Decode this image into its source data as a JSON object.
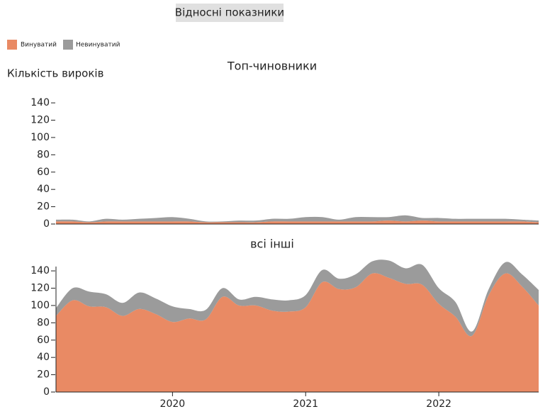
{
  "button": "Відносні показники",
  "chart_data": [
    {
      "type": "stacked-area",
      "title": "Топ-чиновники",
      "y_label": "Кількість вироків",
      "x": [
        2019.125,
        2019.25,
        2019.375,
        2019.5,
        2019.625,
        2019.75,
        2019.875,
        2020,
        2020.125,
        2020.25,
        2020.375,
        2020.5,
        2020.625,
        2020.75,
        2020.875,
        2021,
        2021.125,
        2021.25,
        2021.375,
        2021.5,
        2021.625,
        2021.75,
        2021.875,
        2022,
        2022.125,
        2022.25,
        2022.375,
        2022.5,
        2022.625,
        2022.75
      ],
      "series": [
        {
          "name": "Винуватий",
          "color": "#e98a64",
          "values": [
            3,
            3,
            2,
            3,
            3,
            3,
            3,
            3,
            3,
            2,
            2,
            2,
            2,
            3,
            3,
            3,
            3,
            3,
            3,
            3,
            4,
            3,
            4,
            3,
            3,
            3,
            3,
            3,
            3,
            2
          ]
        },
        {
          "name": "Невинуватий",
          "color": "#9b9b9b",
          "values": [
            2,
            2,
            1,
            3,
            2,
            3,
            4,
            5,
            3,
            1,
            1,
            2,
            2,
            3,
            3,
            5,
            5,
            2,
            5,
            5,
            4,
            7,
            3,
            4,
            3,
            3,
            3,
            3,
            2,
            2
          ]
        }
      ],
      "xlim": [
        2019.125,
        2022.75
      ],
      "ylim": [
        0,
        145
      ],
      "yticks": [
        0,
        20,
        40,
        60,
        80,
        100,
        120,
        140
      ]
    },
    {
      "type": "stacked-area",
      "title": "всі інші",
      "x": [
        2019.125,
        2019.25,
        2019.375,
        2019.5,
        2019.625,
        2019.75,
        2019.875,
        2020,
        2020.125,
        2020.25,
        2020.375,
        2020.5,
        2020.625,
        2020.75,
        2020.875,
        2021,
        2021.125,
        2021.25,
        2021.375,
        2021.5,
        2021.625,
        2021.75,
        2021.875,
        2022,
        2022.125,
        2022.25,
        2022.375,
        2022.5,
        2022.625,
        2022.75
      ],
      "series": [
        {
          "color": "#e98a64",
          "values": [
            88,
            106,
            99,
            98,
            88,
            96,
            90,
            81,
            85,
            84,
            110,
            100,
            100,
            94,
            93,
            98,
            127,
            119,
            121,
            137,
            132,
            125,
            124,
            102,
            87,
            65,
            112,
            137,
            122,
            100
          ]
        },
        {
          "color": "#9b9b9b",
          "values": [
            9,
            14,
            17,
            15,
            15,
            19,
            18,
            18,
            11,
            11,
            10,
            7,
            10,
            13,
            13,
            14,
            14,
            12,
            15,
            14,
            20,
            18,
            23,
            18,
            17,
            5,
            7,
            13,
            14,
            18
          ]
        }
      ],
      "xlim": [
        2019.125,
        2022.75
      ],
      "ylim": [
        0,
        145
      ],
      "yticks": [
        0,
        20,
        40,
        60,
        80,
        100,
        120,
        140
      ],
      "xticks": [
        2020,
        2021,
        2022
      ]
    }
  ]
}
